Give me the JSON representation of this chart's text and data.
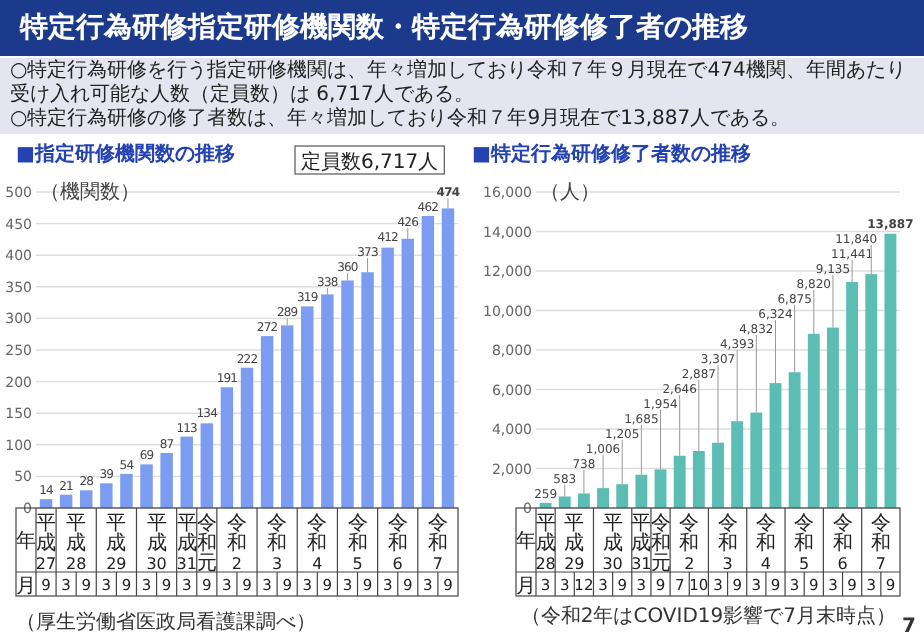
{
  "chart_data": [
    {
      "type": "other",
      "title": "特定行為研修指定研修機関数・特定行為研修修了者の推移",
      "annotations": [
        "○特定行為研修を行う指定研修機関は、年々増加しており令和７年９月現在で474機関、年間あたり受け入れ可能な人数（定員数）は 6,717人である。",
        "○特定行為研修の修了者数は、年々増加しており令和７年9月現在で13,887人である。",
        "7"
      ]
    },
    {
      "type": "bar",
      "title": "■指定研修機関数の推移",
      "ylabel": "（機関数）",
      "categories": [
        "9",
        "3",
        "9",
        "3",
        "9",
        "3",
        "9",
        "3",
        "9",
        "3",
        "9",
        "3",
        "9",
        "3",
        "9",
        "3",
        "9",
        "3",
        "9",
        "3",
        "9"
      ],
      "values": [
        14,
        21,
        28,
        39,
        54,
        69,
        87,
        113,
        134,
        191,
        222,
        272,
        289,
        319,
        338,
        360,
        373,
        412,
        426,
        462,
        474
      ],
      "color": "#7b9cf0",
      "ylim": [
        0,
        500
      ],
      "yticks": [
        0,
        50,
        100,
        150,
        200,
        250,
        300,
        350,
        400,
        450,
        500
      ],
      "grid": "y",
      "data_labels": true,
      "annotations": [
        "年",
        "月",
        "（厚生労働省医政局看護課調べ）",
        "定員数6,717人",
        "平成27",
        "平成28",
        "平成29",
        "平成30",
        "平成31",
        "令和元",
        "令和2",
        "令和3",
        "令和4",
        "令和5",
        "令和6",
        "令和7"
      ]
    },
    {
      "type": "bar",
      "title": "■特定行為研修修了者数の推移",
      "ylabel": "（人）",
      "categories": [
        "3",
        "3",
        "12",
        "3",
        "9",
        "3",
        "9",
        "7",
        "10",
        "3",
        "9",
        "3",
        "9",
        "3",
        "9",
        "3",
        "9",
        "3",
        "9"
      ],
      "values": [
        259,
        583,
        738,
        1006,
        1205,
        1685,
        1954,
        2646,
        2887,
        3307,
        4393,
        4832,
        6324,
        6875,
        8820,
        9135,
        11441,
        11840,
        13887
      ],
      "value_labels": [
        "259",
        "583",
        "738",
        "1,006",
        "1,205",
        "1,685",
        "1,954",
        "2,646",
        "2,887",
        "3,307",
        "4,393",
        "4,832",
        "6,324",
        "6,875",
        "8,820",
        "9,135",
        "11,441",
        "11,840",
        "13,887"
      ],
      "color": "#5bbdb3",
      "ylim": [
        0,
        16000
      ],
      "yticks": [
        0,
        {
          "value": 2000,
          "label": "2,000"
        },
        {
          "value": 4000,
          "label": "4,000"
        },
        {
          "value": 6000,
          "label": "6,000"
        },
        {
          "value": 8000,
          "label": "8,000"
        },
        {
          "value": 10000,
          "label": "10,000"
        },
        {
          "value": 12000,
          "label": "12,000"
        },
        {
          "value": 14000,
          "label": "14,000"
        },
        {
          "value": 16000,
          "label": "16,000"
        }
      ],
      "grid": "y",
      "annotations": [
        "年",
        "月",
        "（令和2年はCOVID19影響で7月末時点）",
        "平成28",
        "平成29",
        "平成30",
        "平成31",
        "令和元",
        "令和2",
        "令和3",
        "令和4",
        "令和5",
        "令和6",
        "令和7"
      ]
    }
  ]
}
